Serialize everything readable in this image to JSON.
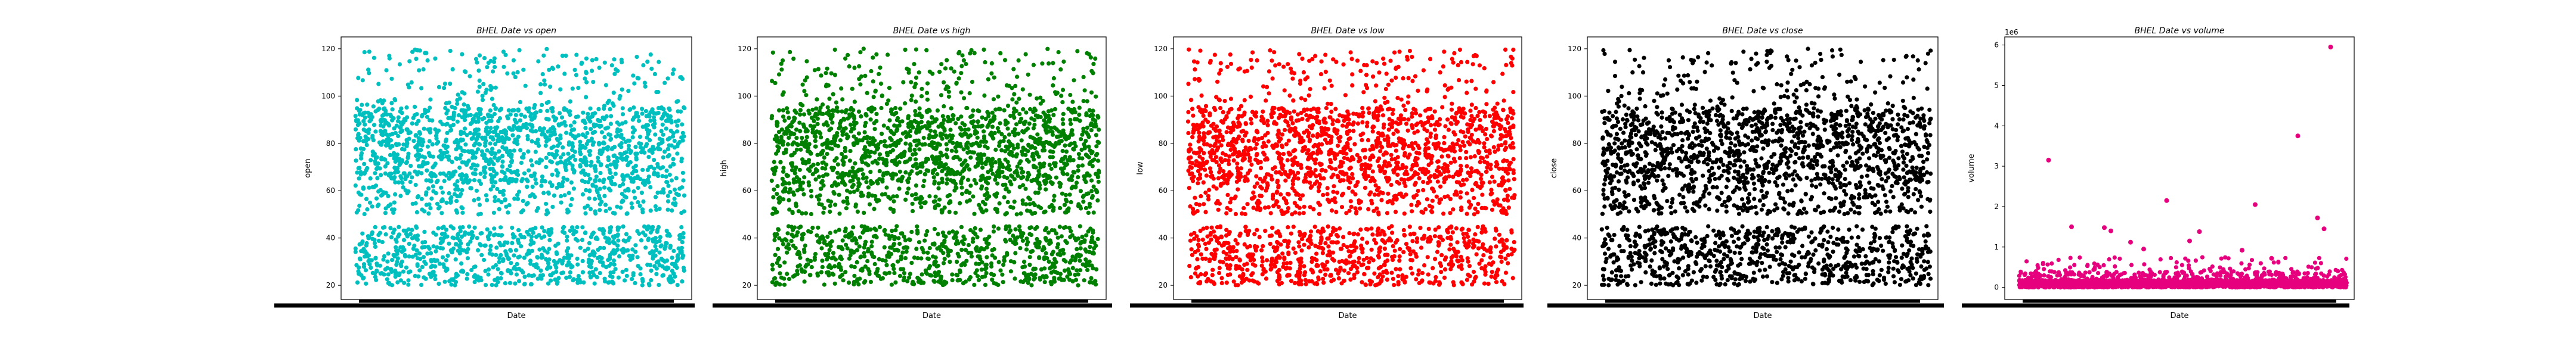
{
  "chart_data": [
    {
      "type": "scatter",
      "title": "BHEL Date vs open",
      "xlabel": "Date",
      "ylabel": "open",
      "color": "#00bfbf",
      "ylim": [
        14,
        125
      ],
      "yticks": [
        20,
        40,
        60,
        80,
        100,
        120
      ],
      "y_bands": [
        [
          20,
          45,
          0.32
        ],
        [
          50,
          63,
          0.12
        ],
        [
          63,
          95,
          0.48
        ],
        [
          95,
          120,
          0.08
        ]
      ],
      "n_points": 2400
    },
    {
      "type": "scatter",
      "title": "BHEL Date vs high",
      "xlabel": "Date",
      "ylabel": "high",
      "color": "#008000",
      "ylim": [
        14,
        125
      ],
      "yticks": [
        20,
        40,
        60,
        80,
        100,
        120
      ],
      "y_bands": [
        [
          20,
          45,
          0.32
        ],
        [
          50,
          63,
          0.12
        ],
        [
          63,
          95,
          0.48
        ],
        [
          95,
          120,
          0.08
        ]
      ],
      "n_points": 2400
    },
    {
      "type": "scatter",
      "title": "BHEL Date vs low",
      "xlabel": "Date",
      "ylabel": "low",
      "color": "#ff0000",
      "ylim": [
        14,
        125
      ],
      "yticks": [
        20,
        40,
        60,
        80,
        100,
        120
      ],
      "y_bands": [
        [
          20,
          45,
          0.32
        ],
        [
          50,
          63,
          0.12
        ],
        [
          63,
          95,
          0.48
        ],
        [
          95,
          120,
          0.08
        ]
      ],
      "n_points": 2400
    },
    {
      "type": "scatter",
      "title": "BHEL Date vs close",
      "xlabel": "Date",
      "ylabel": "close",
      "color": "#000000",
      "ylim": [
        14,
        125
      ],
      "yticks": [
        20,
        40,
        60,
        80,
        100,
        120
      ],
      "y_bands": [
        [
          20,
          45,
          0.32
        ],
        [
          50,
          63,
          0.12
        ],
        [
          63,
          95,
          0.48
        ],
        [
          95,
          120,
          0.08
        ]
      ],
      "n_points": 2400
    },
    {
      "type": "scatter",
      "title": "BHEL Date vs volume",
      "xlabel": "Date",
      "ylabel": "volume",
      "color": "#e6007e",
      "ylim": [
        -0.3,
        6.2
      ],
      "yticks": [
        0,
        1,
        2,
        3,
        4,
        5,
        6
      ],
      "offset_text": "1e6",
      "y_bands": [
        [
          0.0,
          0.18,
          0.86
        ],
        [
          0.18,
          0.4,
          0.11
        ],
        [
          0.4,
          0.75,
          0.03
        ]
      ],
      "n_points": 2400,
      "outliers": [
        {
          "x": 0.09,
          "y": 3.15
        },
        {
          "x": 0.16,
          "y": 1.5
        },
        {
          "x": 0.26,
          "y": 1.48
        },
        {
          "x": 0.28,
          "y": 1.4
        },
        {
          "x": 0.34,
          "y": 1.12
        },
        {
          "x": 0.38,
          "y": 0.95
        },
        {
          "x": 0.45,
          "y": 2.15
        },
        {
          "x": 0.52,
          "y": 1.15
        },
        {
          "x": 0.55,
          "y": 1.38
        },
        {
          "x": 0.68,
          "y": 0.92
        },
        {
          "x": 0.72,
          "y": 2.05
        },
        {
          "x": 0.77,
          "y": 0.72
        },
        {
          "x": 0.85,
          "y": 3.75
        },
        {
          "x": 0.91,
          "y": 1.72
        },
        {
          "x": 0.93,
          "y": 1.45
        },
        {
          "x": 0.95,
          "y": 5.95
        }
      ]
    }
  ]
}
